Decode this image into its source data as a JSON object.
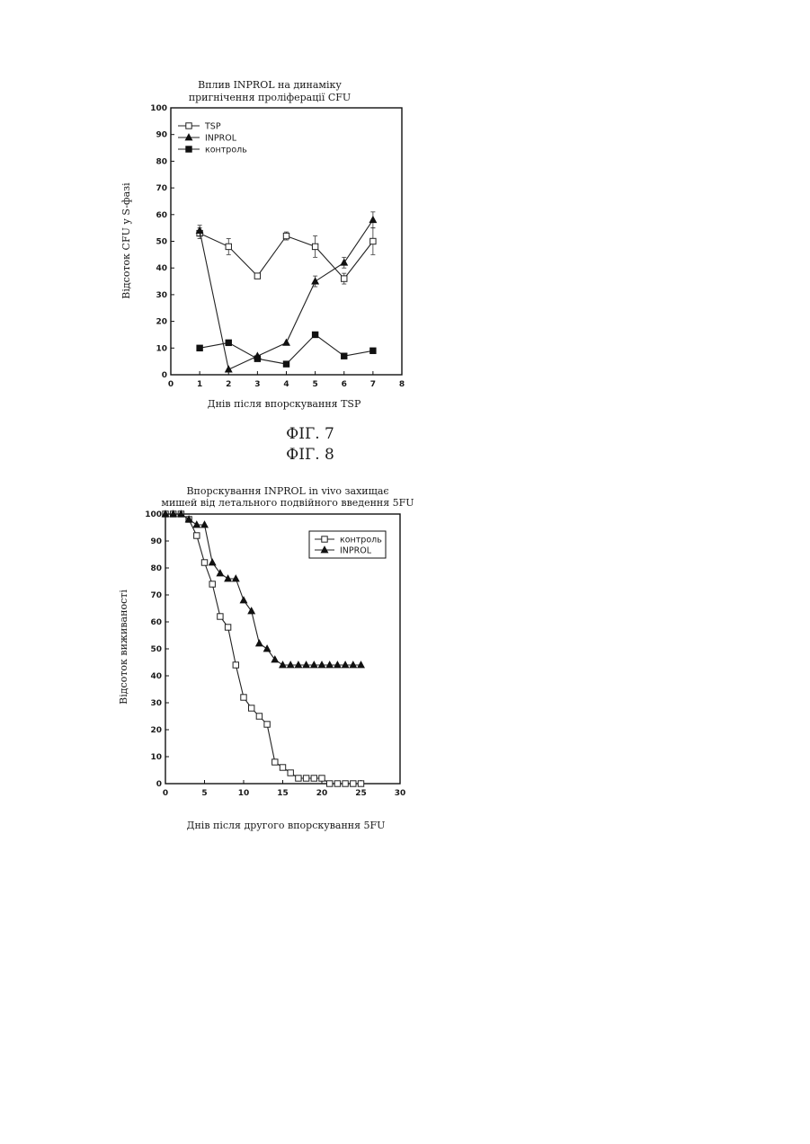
{
  "figures": [
    {
      "label": "ФІГ. 7"
    },
    {
      "label": "ФІГ. 8"
    }
  ],
  "chart_data": [
    {
      "type": "line",
      "title": [
        "Вплив INPROL на динаміку",
        "пригнічення проліферації CFU"
      ],
      "xlabel": "Днів після впорскування TSP",
      "ylabel": "Відсоток CFU у S-фазі",
      "xlim": [
        0,
        8
      ],
      "ylim": [
        0,
        100
      ],
      "x_ticks": [
        "0",
        "1",
        "2",
        "3",
        "4",
        "5",
        "6",
        "7",
        "8"
      ],
      "y_ticks": [
        "0",
        "10",
        "20",
        "30",
        "40",
        "50",
        "60",
        "70",
        "80",
        "90",
        "100"
      ],
      "legend_position": "top-left",
      "series": [
        {
          "name": "TSP",
          "marker": "open-square",
          "x": [
            1,
            2,
            3,
            4,
            5,
            6,
            7
          ],
          "y": [
            53,
            48,
            37,
            52,
            48,
            36,
            50
          ],
          "err": [
            2,
            3,
            1,
            1.5,
            4,
            2,
            5
          ]
        },
        {
          "name": "INPROL",
          "marker": "filled-triangle",
          "x": [
            1,
            2,
            3,
            4,
            5,
            6,
            7
          ],
          "y": [
            54,
            2,
            7,
            12,
            35,
            42,
            58
          ],
          "err": [
            2,
            0,
            0,
            0,
            2,
            2,
            3
          ]
        },
        {
          "name": "контроль",
          "marker": "filled-square",
          "x": [
            1,
            2,
            3,
            4,
            5,
            6,
            7
          ],
          "y": [
            10,
            12,
            6,
            4,
            15,
            7,
            9
          ],
          "err": [
            0,
            0,
            0,
            0,
            0,
            0,
            0
          ]
        }
      ]
    },
    {
      "type": "line",
      "title": [
        "Впорскування INPROL in vivo захищає",
        "мишей від летального подвійного введення 5FU"
      ],
      "xlabel": "Днів після другого впорскування 5FU",
      "ylabel": "Відсоток виживаності",
      "xlim": [
        0,
        30
      ],
      "ylim": [
        0,
        100
      ],
      "x_ticks": [
        "0",
        "5",
        "10",
        "15",
        "20",
        "25",
        "30"
      ],
      "y_ticks": [
        "0",
        "10",
        "20",
        "30",
        "40",
        "50",
        "60",
        "70",
        "80",
        "90",
        "100"
      ],
      "legend_position": "top-right",
      "series": [
        {
          "name": "контроль",
          "marker": "open-square",
          "x": [
            0,
            1,
            2,
            3,
            4,
            5,
            6,
            7,
            8,
            9,
            10,
            11,
            12,
            13,
            14,
            15,
            16,
            17,
            18,
            19,
            20,
            21,
            22,
            23,
            24,
            25
          ],
          "y": [
            100,
            100,
            100,
            98,
            92,
            82,
            74,
            62,
            58,
            44,
            32,
            28,
            25,
            22,
            8,
            6,
            4,
            2,
            2,
            2,
            2,
            0,
            0,
            0,
            0,
            0
          ]
        },
        {
          "name": "INPROL",
          "marker": "filled-triangle",
          "x": [
            0,
            1,
            2,
            3,
            4,
            5,
            6,
            7,
            8,
            9,
            10,
            11,
            12,
            13,
            14,
            15,
            16,
            17,
            18,
            19,
            20,
            21,
            22,
            23,
            24,
            25
          ],
          "y": [
            100,
            100,
            100,
            98,
            96,
            96,
            82,
            78,
            76,
            76,
            68,
            64,
            52,
            50,
            46,
            44,
            44,
            44,
            44,
            44,
            44,
            44,
            44,
            44,
            44,
            44
          ]
        }
      ]
    }
  ]
}
